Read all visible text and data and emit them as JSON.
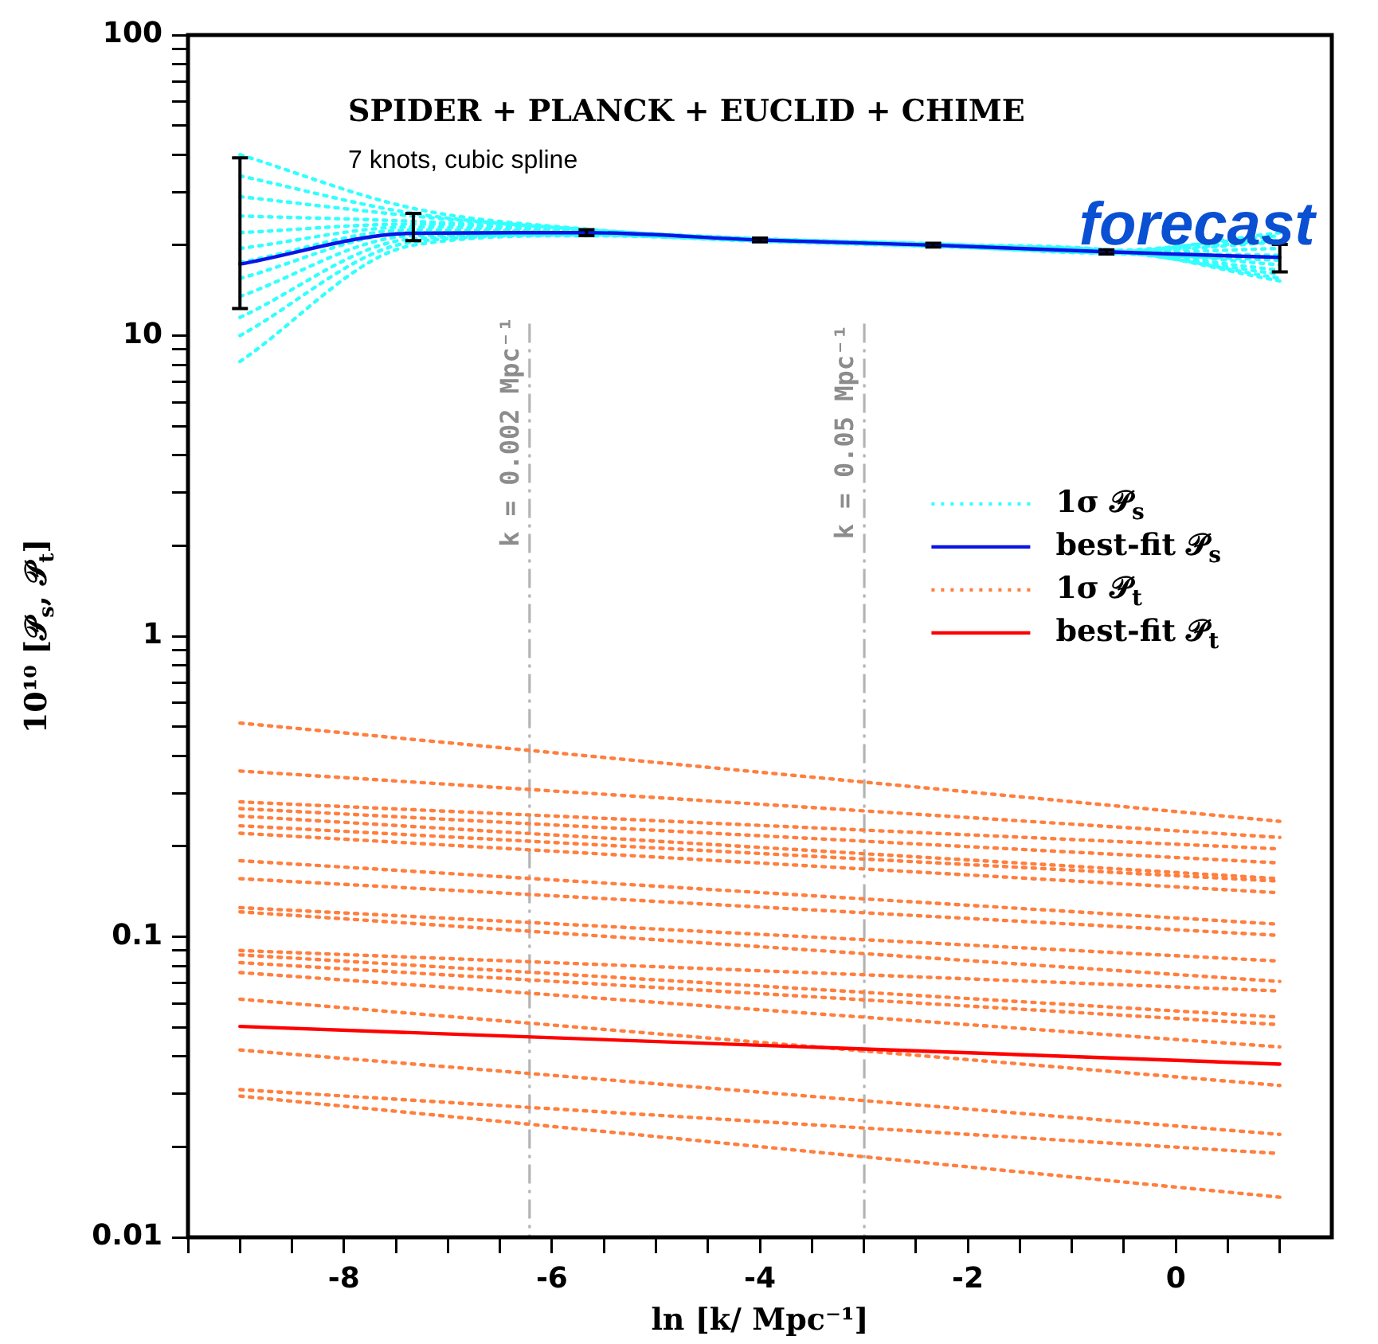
{
  "chart_data": {
    "type": "line",
    "xlabel": "ln [k/ Mpc⁻¹]",
    "ylabel": "10¹⁰ [𝒫$_{s}$, 𝒫$_{t}$]",
    "annotations": [
      "SPIDER + PLANCK + EUCLID + CHIME",
      "7 knots, cubic spline",
      "forecast",
      "k = 0.002 Mpc⁻¹",
      "k = 0.05 Mpc⁻¹"
    ],
    "log": "y",
    "xlim": [
      -9.5,
      1.5
    ],
    "ylim": [
      0.01,
      100
    ],
    "xticks": [
      {
        "value": -9.5,
        "label": null
      },
      {
        "value": -9,
        "label": null
      },
      {
        "value": -8.5,
        "label": null
      },
      -8,
      {
        "value": -7.5,
        "label": null
      },
      {
        "value": -7,
        "label": null
      },
      {
        "value": -6.5,
        "label": null
      },
      -6,
      {
        "value": -5.5,
        "label": null
      },
      {
        "value": -5,
        "label": null
      },
      {
        "value": -4.5,
        "label": null
      },
      -4,
      {
        "value": -3.5,
        "label": null
      },
      {
        "value": -3,
        "label": null
      },
      {
        "value": -2.5,
        "label": null
      },
      -2,
      {
        "value": -1.5,
        "label": null
      },
      {
        "value": -1,
        "label": null
      },
      {
        "value": -0.5,
        "label": null
      },
      0,
      {
        "value": 0.5,
        "label": null
      },
      {
        "value": 1,
        "label": null
      }
    ],
    "yticks": [
      0.01,
      {
        "value": 0.02,
        "label": null
      },
      {
        "value": 0.03,
        "label": null
      },
      {
        "value": 0.04,
        "label": null
      },
      {
        "value": 0.05,
        "label": null
      },
      {
        "value": 0.06,
        "label": null
      },
      {
        "value": 0.07,
        "label": null
      },
      {
        "value": 0.08,
        "label": null
      },
      {
        "value": 0.09,
        "label": null
      },
      0.1,
      {
        "value": 0.2,
        "label": null
      },
      {
        "value": 0.3,
        "label": null
      },
      {
        "value": 0.4,
        "label": null
      },
      {
        "value": 0.5,
        "label": null
      },
      {
        "value": 0.6,
        "label": null
      },
      {
        "value": 0.7,
        "label": null
      },
      {
        "value": 0.8,
        "label": null
      },
      {
        "value": 0.9,
        "label": null
      },
      1,
      {
        "value": 2,
        "label": null
      },
      {
        "value": 3,
        "label": null
      },
      {
        "value": 4,
        "label": null
      },
      {
        "value": 5,
        "label": null
      },
      {
        "value": 6,
        "label": null
      },
      {
        "value": 7,
        "label": null
      },
      {
        "value": 8,
        "label": null
      },
      {
        "value": 9,
        "label": null
      },
      10,
      {
        "value": 20,
        "label": null
      },
      {
        "value": 30,
        "label": null
      },
      {
        "value": 40,
        "label": null
      },
      {
        "value": 50,
        "label": null
      },
      {
        "value": 60,
        "label": null
      },
      {
        "value": 70,
        "label": null
      },
      {
        "value": 80,
        "label": null
      },
      {
        "value": 90,
        "label": null
      },
      100
    ],
    "grid": false,
    "legend": "right",
    "ref_lines": [
      {
        "axis": "x",
        "value": -6.215,
        "color": "#b4b4b4",
        "line_style": "dashed"
      },
      {
        "axis": "x",
        "value": -2.996,
        "color": "#b4b4b4",
        "line_style": "dashed"
      }
    ],
    "series": [
      {
        "name": "1σ 𝒫$_{s}$",
        "color": "#33ffff",
        "line_style": "dotted",
        "x": [
          -9,
          -7.333,
          -5.667,
          -4,
          -2.333,
          -0.667,
          1
        ],
        "values": [
          40,
          26.5,
          22.6,
          21.0,
          20.2,
          19.2,
          21.5
        ]
      },
      {
        "color": "#33ffff",
        "line_style": "dotted",
        "x": [
          -9,
          -7.333,
          -5.667,
          -4,
          -2.333,
          -0.667,
          1
        ],
        "values": [
          34,
          25.5,
          22.5,
          20.9,
          20.1,
          19.3,
          15.5
        ]
      },
      {
        "color": "#33ffff",
        "line_style": "dotted",
        "x": [
          -9,
          -7.333,
          -5.667,
          -4,
          -2.333,
          -0.667,
          1
        ],
        "values": [
          29,
          25,
          22.4,
          21.0,
          19.9,
          18.9,
          20.5
        ]
      },
      {
        "color": "#33ffff",
        "line_style": "dotted",
        "x": [
          -9,
          -7.333,
          -5.667,
          -4,
          -2.333,
          -0.667,
          1
        ],
        "values": [
          25,
          24,
          22.3,
          20.7,
          20.0,
          19.1,
          16.5
        ]
      },
      {
        "color": "#33ffff",
        "line_style": "dotted",
        "x": [
          -9,
          -7.333,
          -5.667,
          -4,
          -2.333,
          -0.667,
          1
        ],
        "values": [
          22,
          23.5,
          22.1,
          20.9,
          20.1,
          18.8,
          19.5
        ]
      },
      {
        "color": "#33ffff",
        "line_style": "dotted",
        "x": [
          -9,
          -7.333,
          -5.667,
          -4,
          -2.333,
          -0.667,
          1
        ],
        "values": [
          19.5,
          23,
          22.0,
          20.8,
          19.9,
          19.2,
          17.2
        ]
      },
      {
        "color": "#33ffff",
        "line_style": "dotted",
        "x": [
          -9,
          -7.333,
          -5.667,
          -4,
          -2.333,
          -0.667,
          1
        ],
        "values": [
          17.5,
          22.5,
          21.9,
          20.7,
          20.0,
          19.0,
          22
        ]
      },
      {
        "color": "#33ffff",
        "line_style": "dotted",
        "x": [
          -9,
          -7.333,
          -5.667,
          -4,
          -2.333,
          -0.667,
          1
        ],
        "values": [
          15.5,
          22,
          21.8,
          20.9,
          20.2,
          18.9,
          18.5
        ]
      },
      {
        "color": "#33ffff",
        "line_style": "dotted",
        "x": [
          -9,
          -7.333,
          -5.667,
          -4,
          -2.333,
          -0.667,
          1
        ],
        "values": [
          13.5,
          21.5,
          21.7,
          20.8,
          19.9,
          19.3,
          15.2
        ]
      },
      {
        "color": "#33ffff",
        "line_style": "dotted",
        "x": [
          -9,
          -7.333,
          -5.667,
          -4,
          -2.333,
          -0.667,
          1
        ],
        "values": [
          11.5,
          21,
          21.6,
          20.7,
          20.1,
          19.0,
          20.8
        ]
      },
      {
        "color": "#33ffff",
        "line_style": "dotted",
        "x": [
          -9,
          -7.333,
          -5.667,
          -4,
          -2.333,
          -0.667,
          1
        ],
        "values": [
          10,
          20.5,
          21.6,
          20.6,
          19.8,
          18.8,
          17.8
        ]
      },
      {
        "color": "#33ffff",
        "line_style": "dotted",
        "x": [
          -9,
          -7.333,
          -5.667,
          -4,
          -2.333,
          -0.667,
          1
        ],
        "values": [
          8.2,
          20,
          21.5,
          20.8,
          20.0,
          19.1,
          16.0
        ]
      },
      {
        "name": "best-fit 𝒫$_{s}$",
        "color": "#0a14e6",
        "line_style": "solid",
        "x": [
          -9,
          -7.333,
          -5.667,
          -4,
          -2.333,
          -0.667,
          1
        ],
        "values": [
          17.3,
          21.9,
          22.0,
          20.8,
          20.0,
          19.0,
          18.2
        ],
        "errors": [
          [
            12.3,
            39
          ],
          [
            20.7,
            25.5
          ],
          [
            21.5,
            22.5
          ],
          [
            20.5,
            21.1
          ],
          [
            19.7,
            20.3
          ],
          [
            18.7,
            19.3
          ],
          [
            16.3,
            20.1
          ]
        ]
      },
      {
        "name": "1σ 𝒫$_{t}$",
        "color": "#ff7f3f",
        "line_style": "dotted",
        "x": [
          -9,
          1
        ],
        "values": [
          0.514,
          0.242
        ]
      },
      {
        "color": "#ff7f3f",
        "line_style": "dotted",
        "x": [
          -9,
          1
        ],
        "values": [
          0.356,
          0.214
        ]
      },
      {
        "color": "#ff7f3f",
        "line_style": "dotted",
        "x": [
          -9,
          1
        ],
        "values": [
          0.281,
          0.196
        ]
      },
      {
        "color": "#ff7f3f",
        "line_style": "dotted",
        "x": [
          -9,
          1
        ],
        "values": [
          0.267,
          0.176
        ]
      },
      {
        "color": "#ff7f3f",
        "line_style": "dotted",
        "x": [
          -9,
          1
        ],
        "values": [
          0.252,
          0.156
        ]
      },
      {
        "color": "#ff7f3f",
        "line_style": "dotted",
        "x": [
          -9,
          1
        ],
        "values": [
          0.234,
          0.153
        ]
      },
      {
        "color": "#ff7f3f",
        "line_style": "dotted",
        "x": [
          -9,
          1
        ],
        "values": [
          0.221,
          0.14
        ]
      },
      {
        "color": "#ff7f3f",
        "line_style": "dotted",
        "x": [
          -9,
          1
        ],
        "values": [
          0.179,
          0.11
        ]
      },
      {
        "color": "#ff7f3f",
        "line_style": "dotted",
        "x": [
          -9,
          1
        ],
        "values": [
          0.156,
          0.101
        ]
      },
      {
        "color": "#ff7f3f",
        "line_style": "dotted",
        "x": [
          -9,
          1
        ],
        "values": [
          0.125,
          0.083
        ]
      },
      {
        "color": "#ff7f3f",
        "line_style": "dotted",
        "x": [
          -9,
          1
        ],
        "values": [
          0.121,
          0.071
        ]
      },
      {
        "color": "#ff7f3f",
        "line_style": "dotted",
        "x": [
          -9,
          1
        ],
        "values": [
          0.09,
          0.066
        ]
      },
      {
        "color": "#ff7f3f",
        "line_style": "dotted",
        "x": [
          -9,
          1
        ],
        "values": [
          0.087,
          0.054
        ]
      },
      {
        "color": "#ff7f3f",
        "line_style": "dotted",
        "x": [
          -9,
          1
        ],
        "values": [
          0.082,
          0.051
        ]
      },
      {
        "color": "#ff7f3f",
        "line_style": "dotted",
        "x": [
          -9,
          1
        ],
        "values": [
          0.076,
          0.043
        ]
      },
      {
        "color": "#ff7f3f",
        "line_style": "dotted",
        "x": [
          -9,
          1
        ],
        "values": [
          0.062,
          0.032
        ]
      },
      {
        "color": "#ff7f3f",
        "line_style": "dotted",
        "x": [
          -9,
          1
        ],
        "values": [
          0.042,
          0.022
        ]
      },
      {
        "color": "#ff7f3f",
        "line_style": "dotted",
        "x": [
          -9,
          1
        ],
        "values": [
          0.031,
          0.019
        ]
      },
      {
        "color": "#ff7f3f",
        "line_style": "dotted",
        "x": [
          -9,
          1
        ],
        "values": [
          0.0295,
          0.0136
        ]
      },
      {
        "name": "best-fit 𝒫$_{t}$",
        "color": "#ff0000",
        "line_style": "solid",
        "x": [
          -9,
          1
        ],
        "values": [
          0.0503,
          0.0377
        ]
      }
    ]
  }
}
